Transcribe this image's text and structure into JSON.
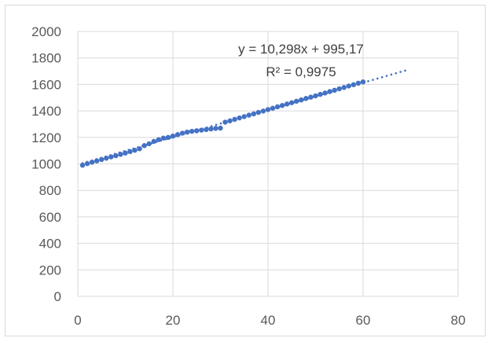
{
  "chart_data": {
    "type": "scatter",
    "title": "",
    "xlabel": "",
    "ylabel": "",
    "xlim": [
      0,
      80
    ],
    "ylim": [
      0,
      2000
    ],
    "x_ticks": [
      "0",
      "20",
      "40",
      "60",
      "80"
    ],
    "y_ticks": [
      "0",
      "200",
      "400",
      "600",
      "800",
      "1000",
      "1200",
      "1400",
      "1600",
      "1800",
      "2000"
    ],
    "grid": "both",
    "legend": "none",
    "marker_color": "#4472c4",
    "trendline": {
      "type": "linear",
      "slope": 10.298,
      "intercept": 995.17,
      "x_range": [
        1,
        69
      ],
      "style": "dotted",
      "equation_label": "y = 10,298x + 995,17",
      "r2_label": "R² = 0,9975"
    },
    "series": [
      {
        "x": [
          1,
          2,
          3,
          4,
          5,
          6,
          7,
          8,
          9,
          10,
          11,
          12,
          13,
          14,
          15,
          16,
          17,
          18,
          19,
          20,
          21,
          22,
          23,
          24,
          25,
          26,
          27,
          28,
          29,
          30,
          31,
          32,
          33,
          34,
          35,
          36,
          37,
          38,
          39,
          40,
          41,
          42,
          43,
          44,
          45,
          46,
          47,
          48,
          49,
          50,
          51,
          52,
          53,
          54,
          55,
          56,
          57,
          58,
          59,
          60
        ],
        "y": [
          990,
          1002,
          1013,
          1023,
          1033,
          1043,
          1053,
          1062,
          1072,
          1082,
          1093,
          1103,
          1114,
          1138,
          1152,
          1170,
          1183,
          1195,
          1200,
          1210,
          1221,
          1232,
          1240,
          1246,
          1250,
          1255,
          1259,
          1264,
          1268,
          1270,
          1315,
          1325,
          1336,
          1347,
          1357,
          1368,
          1378,
          1389,
          1399,
          1410,
          1420,
          1431,
          1441,
          1452,
          1462,
          1473,
          1483,
          1494,
          1504,
          1514,
          1525,
          1535,
          1546,
          1556,
          1567,
          1577,
          1588,
          1598,
          1609,
          1619
        ]
      }
    ]
  }
}
